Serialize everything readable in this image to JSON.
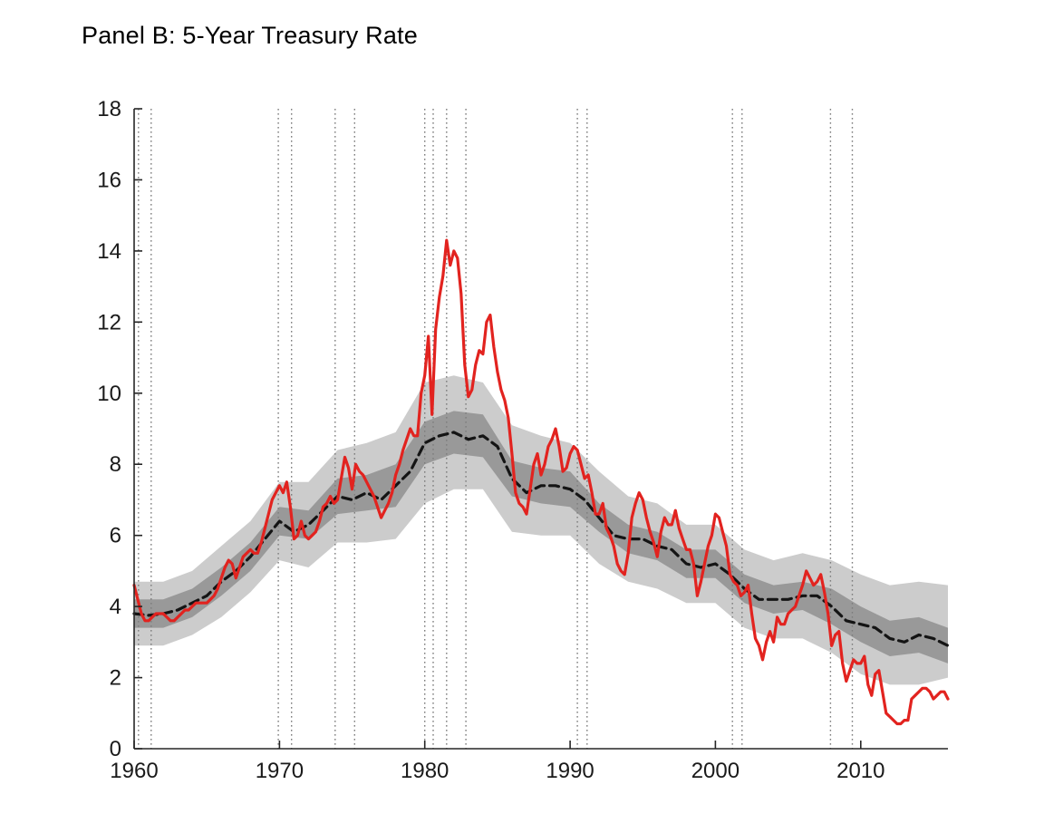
{
  "chart_data": {
    "type": "line",
    "title": "Panel B: 5-Year Treasury Rate",
    "xlabel": "",
    "ylabel": "",
    "xlim": [
      1960,
      2016
    ],
    "ylim": [
      0,
      18
    ],
    "xticks": [
      1960,
      1970,
      1980,
      1990,
      2000,
      2010
    ],
    "yticks": [
      0,
      2,
      4,
      6,
      8,
      10,
      12,
      14,
      16,
      18
    ],
    "grid": false,
    "legend": null,
    "axis_color": "#262626",
    "tick_label_color": "#1a1a1a",
    "recession_line_color": "#7d7d7d",
    "recessions": [
      [
        1960.3,
        1961.17
      ],
      [
        1969.92,
        1970.83
      ],
      [
        1973.83,
        1975.17
      ],
      [
        1980.0,
        1980.58
      ],
      [
        1981.5,
        1982.83
      ],
      [
        1990.5,
        1991.17
      ],
      [
        2001.17,
        2001.83
      ],
      [
        2007.92,
        2009.42
      ]
    ],
    "bands": [
      {
        "name": "outer-confidence-band",
        "color": "#cccccc",
        "x_start": 1960,
        "x_step": 2,
        "upper": [
          4.7,
          4.7,
          5.0,
          5.7,
          6.4,
          7.5,
          7.5,
          8.4,
          8.6,
          8.9,
          10.3,
          10.5,
          10.3,
          9.1,
          8.8,
          8.6,
          7.8,
          7.1,
          6.9,
          6.3,
          6.3,
          5.6,
          5.3,
          5.5,
          5.3,
          4.9,
          4.6,
          4.7,
          4.6
        ],
        "lower": [
          2.9,
          2.9,
          3.2,
          3.7,
          4.4,
          5.3,
          5.1,
          5.8,
          5.8,
          5.9,
          6.9,
          7.3,
          7.3,
          6.1,
          6.0,
          6.0,
          5.2,
          4.7,
          4.5,
          4.1,
          4.1,
          3.4,
          3.1,
          3.1,
          2.7,
          2.1,
          1.8,
          1.8,
          2.0
        ]
      },
      {
        "name": "inner-confidence-band",
        "color": "#999999",
        "x_start": 1960,
        "x_step": 2,
        "upper": [
          4.2,
          4.2,
          4.5,
          5.1,
          5.8,
          6.8,
          6.7,
          7.6,
          7.7,
          8.0,
          9.2,
          9.5,
          9.4,
          8.1,
          7.9,
          7.8,
          6.9,
          6.3,
          6.1,
          5.6,
          5.6,
          4.9,
          4.6,
          4.7,
          4.5,
          4.0,
          3.6,
          3.7,
          3.4
        ],
        "lower": [
          3.4,
          3.4,
          3.7,
          4.3,
          5.0,
          6.0,
          5.9,
          6.6,
          6.7,
          6.8,
          8.0,
          8.3,
          8.2,
          7.1,
          6.9,
          6.8,
          6.1,
          5.5,
          5.3,
          4.8,
          4.8,
          4.1,
          3.8,
          3.9,
          3.5,
          3.0,
          2.6,
          2.7,
          2.4
        ]
      }
    ],
    "series": [
      {
        "name": "trend-estimate",
        "style": "dashed",
        "color": "#141414",
        "width": 3.2,
        "x_start": 1960,
        "x_step": 1,
        "values": [
          3.8,
          3.75,
          3.8,
          3.9,
          4.1,
          4.3,
          4.7,
          5.0,
          5.4,
          5.9,
          6.4,
          6.1,
          6.3,
          6.7,
          7.1,
          7.0,
          7.2,
          7.0,
          7.4,
          7.8,
          8.6,
          8.8,
          8.9,
          8.7,
          8.8,
          8.5,
          7.6,
          7.2,
          7.4,
          7.4,
          7.3,
          7.0,
          6.5,
          6.0,
          5.9,
          5.9,
          5.7,
          5.6,
          5.2,
          5.1,
          5.2,
          4.9,
          4.5,
          4.2,
          4.2,
          4.2,
          4.3,
          4.3,
          4.0,
          3.6,
          3.5,
          3.4,
          3.1,
          3.0,
          3.2,
          3.1,
          2.9
        ]
      },
      {
        "name": "actual-5yr-treasury-rate",
        "style": "solid",
        "color": "#e2231f",
        "width": 3.2,
        "x_start": 1960,
        "x_step": 0.25,
        "values": [
          4.6,
          4.2,
          3.8,
          3.6,
          3.6,
          3.7,
          3.8,
          3.8,
          3.8,
          3.7,
          3.6,
          3.6,
          3.7,
          3.8,
          3.9,
          3.9,
          4.0,
          4.1,
          4.1,
          4.1,
          4.1,
          4.2,
          4.3,
          4.5,
          4.8,
          5.1,
          5.3,
          5.2,
          4.8,
          5.1,
          5.4,
          5.5,
          5.6,
          5.5,
          5.5,
          5.8,
          6.2,
          6.6,
          7.0,
          7.2,
          7.4,
          7.2,
          7.5,
          6.8,
          5.9,
          6.0,
          6.4,
          6.0,
          5.9,
          6.0,
          6.1,
          6.4,
          6.8,
          6.9,
          7.1,
          6.9,
          7.0,
          7.6,
          8.2,
          7.9,
          7.3,
          8.0,
          7.8,
          7.7,
          7.5,
          7.3,
          7.1,
          6.8,
          6.5,
          6.7,
          6.9,
          7.2,
          7.7,
          8.0,
          8.4,
          8.7,
          9.0,
          8.8,
          8.8,
          10.0,
          10.5,
          11.6,
          9.4,
          11.8,
          12.7,
          13.3,
          14.3,
          13.6,
          14.0,
          13.8,
          12.8,
          10.8,
          9.9,
          10.1,
          10.8,
          11.2,
          11.1,
          12.0,
          12.2,
          11.3,
          10.6,
          10.1,
          9.8,
          9.3,
          8.3,
          7.2,
          6.9,
          6.8,
          6.6,
          7.3,
          8.0,
          8.3,
          7.7,
          8.0,
          8.5,
          8.7,
          9.0,
          8.5,
          7.8,
          7.9,
          8.3,
          8.5,
          8.4,
          8.0,
          7.6,
          7.7,
          7.2,
          6.6,
          6.6,
          6.9,
          6.2,
          6.0,
          5.7,
          5.2,
          5.0,
          4.9,
          5.5,
          6.5,
          6.9,
          7.2,
          7.0,
          6.5,
          6.1,
          5.8,
          5.4,
          6.1,
          6.5,
          6.3,
          6.3,
          6.7,
          6.2,
          5.9,
          5.6,
          5.6,
          5.2,
          4.3,
          4.7,
          5.2,
          5.7,
          6.0,
          6.6,
          6.5,
          6.1,
          5.7,
          4.9,
          4.7,
          4.6,
          4.3,
          4.4,
          4.6,
          3.8,
          3.1,
          2.9,
          2.5,
          3.0,
          3.3,
          3.0,
          3.7,
          3.5,
          3.5,
          3.8,
          3.9,
          4.0,
          4.3,
          4.6,
          5.0,
          4.8,
          4.6,
          4.7,
          4.9,
          4.4,
          3.8,
          2.9,
          3.2,
          3.3,
          2.4,
          1.9,
          2.2,
          2.5,
          2.4,
          2.4,
          2.6,
          1.8,
          1.5,
          2.1,
          2.2,
          1.6,
          1.0,
          0.9,
          0.8,
          0.7,
          0.7,
          0.8,
          0.8,
          1.4,
          1.5,
          1.6,
          1.7,
          1.7,
          1.6,
          1.4,
          1.5,
          1.6,
          1.6,
          1.4
        ]
      }
    ]
  }
}
